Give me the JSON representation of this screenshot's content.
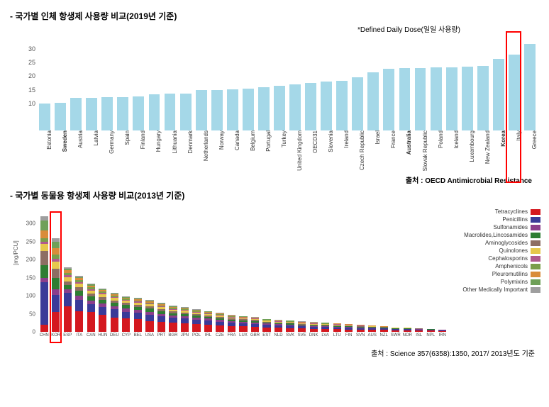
{
  "section1_title": "- 국가별 인체 항생제 사용량 비교(2019년 기준)",
  "ddd_note": "*Defined Daily Dose(일일 사용량)",
  "chart1": {
    "type": "bar",
    "bar_color": "#a5d8e8",
    "background_color": "#ffffff",
    "ylim": [
      0,
      35
    ],
    "yticks": [
      10,
      15,
      20,
      25,
      30
    ],
    "highlight_index": 30,
    "categories": [
      "Estonia",
      "Sweden",
      "Austria",
      "Latvia",
      "Germany",
      "Spain",
      "Finland",
      "Hungary",
      "Lithuania",
      "Denmark",
      "Netherlands",
      "Norway",
      "Canada",
      "Belgium",
      "Portugal",
      "Turkey",
      "United Kingdom",
      "OECD31",
      "Slovenia",
      "Ireland",
      "Czech Republic",
      "Israel",
      "France",
      "Australia",
      "Slovak Republic",
      "Poland",
      "Iceland",
      "Luxembourg",
      "New Zealand",
      "Korea",
      "Italy",
      "Greece"
    ],
    "bold_labels": [
      "Sweden",
      "Australia",
      "Korea"
    ],
    "values": [
      10.0,
      10.3,
      12.0,
      12.1,
      12.3,
      12.4,
      12.5,
      13.3,
      13.5,
      13.7,
      15.0,
      15.0,
      15.2,
      15.5,
      16.0,
      16.5,
      17.0,
      17.5,
      18.0,
      18.2,
      19.5,
      21.5,
      22.8,
      23.0,
      23.0,
      23.2,
      23.3,
      23.5,
      23.7,
      26.5,
      28.0,
      32.0
    ],
    "label_fontsize": 8
  },
  "source1": "출처 : OECD Antimicrobial Resistance",
  "section2_title": "- 국가별 동물용 항생제 사용량 비교(2013년 기준)",
  "chart2": {
    "type": "stacked_bar",
    "ylabel": "[mg/PCU]",
    "ylim": [
      0,
      350
    ],
    "yticks": [
      0,
      50,
      100,
      150,
      200,
      250,
      300
    ],
    "highlight_index": 1,
    "legend": [
      {
        "label": "Tetracyclines",
        "color": "#d4181f"
      },
      {
        "label": "Penicillins",
        "color": "#3a3a98"
      },
      {
        "label": "Sulfonamides",
        "color": "#8b3e8b"
      },
      {
        "label": "Macrolides,Lincosamides",
        "color": "#2e7d32"
      },
      {
        "label": "Aminoglycosides",
        "color": "#8d6e63"
      },
      {
        "label": "Quinolones",
        "color": "#e6c84c"
      },
      {
        "label": "Cephalosporins",
        "color": "#b05a8e"
      },
      {
        "label": "Amphenicols",
        "color": "#7b9e4a"
      },
      {
        "label": "Pleuromutilins",
        "color": "#d98c3a"
      },
      {
        "label": "Polymixins",
        "color": "#6fa058"
      },
      {
        "label": "Other Medically Important",
        "color": "#9e9e9e"
      }
    ],
    "countries": [
      "CHN",
      "KOR",
      "ESP",
      "ITA",
      "CAN",
      "HUN",
      "DEU",
      "CYP",
      "BEL",
      "USA",
      "PRT",
      "BGR",
      "JPN",
      "POL",
      "IRL",
      "CZE",
      "FRA",
      "LUX",
      "GBR",
      "EST",
      "NLD",
      "SVK",
      "SVE",
      "DNK",
      "LVA",
      "LTU",
      "FIN",
      "SVN",
      "AUS",
      "NZL",
      "SWR",
      "NOR",
      "ISL",
      "NPL",
      "IRN"
    ],
    "stacks": [
      [
        20,
        118,
        12,
        35,
        40,
        18,
        6,
        10,
        22,
        28,
        12
      ],
      [
        55,
        48,
        15,
        32,
        25,
        20,
        8,
        12,
        18,
        16,
        10
      ],
      [
        70,
        38,
        10,
        12,
        10,
        12,
        6,
        6,
        8,
        4,
        4
      ],
      [
        58,
        30,
        12,
        15,
        8,
        10,
        5,
        5,
        6,
        3,
        3
      ],
      [
        55,
        22,
        10,
        12,
        8,
        8,
        4,
        4,
        5,
        3,
        3
      ],
      [
        48,
        20,
        10,
        10,
        8,
        8,
        4,
        4,
        4,
        2,
        2
      ],
      [
        40,
        22,
        8,
        10,
        6,
        8,
        3,
        3,
        4,
        2,
        2
      ],
      [
        38,
        18,
        8,
        10,
        6,
        6,
        3,
        3,
        3,
        2,
        2
      ],
      [
        35,
        18,
        8,
        8,
        6,
        6,
        3,
        3,
        3,
        2,
        2
      ],
      [
        30,
        18,
        8,
        8,
        6,
        6,
        3,
        2,
        3,
        2,
        2
      ],
      [
        28,
        16,
        6,
        8,
        5,
        6,
        2,
        2,
        3,
        2,
        2
      ],
      [
        26,
        14,
        6,
        6,
        5,
        5,
        2,
        2,
        2,
        2,
        2
      ],
      [
        24,
        14,
        6,
        6,
        4,
        5,
        2,
        2,
        2,
        2,
        2
      ],
      [
        22,
        12,
        5,
        6,
        4,
        4,
        2,
        2,
        2,
        2,
        2
      ],
      [
        20,
        12,
        5,
        5,
        4,
        4,
        2,
        2,
        2,
        1,
        1
      ],
      [
        18,
        10,
        5,
        5,
        3,
        4,
        2,
        2,
        2,
        1,
        1
      ],
      [
        16,
        10,
        4,
        4,
        3,
        3,
        2,
        1,
        2,
        1,
        1
      ],
      [
        15,
        9,
        4,
        4,
        3,
        3,
        1,
        1,
        2,
        1,
        1
      ],
      [
        14,
        8,
        4,
        4,
        3,
        3,
        1,
        1,
        1,
        1,
        1
      ],
      [
        12,
        8,
        3,
        3,
        2,
        3,
        1,
        1,
        1,
        1,
        1
      ],
      [
        11,
        7,
        3,
        3,
        2,
        2,
        1,
        1,
        1,
        1,
        1
      ],
      [
        10,
        7,
        3,
        3,
        2,
        2,
        1,
        1,
        1,
        1,
        1
      ],
      [
        9,
        6,
        2,
        3,
        2,
        2,
        1,
        1,
        1,
        1,
        1
      ],
      [
        8,
        6,
        2,
        2,
        2,
        2,
        1,
        1,
        1,
        1,
        1
      ],
      [
        8,
        5,
        2,
        2,
        2,
        2,
        1,
        1,
        1,
        1,
        1
      ],
      [
        7,
        5,
        2,
        2,
        2,
        2,
        1,
        1,
        1,
        1,
        0
      ],
      [
        6,
        5,
        2,
        2,
        1,
        2,
        1,
        1,
        1,
        1,
        0
      ],
      [
        6,
        4,
        2,
        2,
        1,
        1,
        1,
        1,
        1,
        0,
        0
      ],
      [
        5,
        4,
        2,
        2,
        1,
        1,
        1,
        0,
        1,
        0,
        0
      ],
      [
        5,
        4,
        1,
        2,
        1,
        1,
        0,
        0,
        1,
        0,
        0
      ],
      [
        4,
        3,
        1,
        1,
        1,
        1,
        0,
        0,
        1,
        0,
        0
      ],
      [
        4,
        3,
        1,
        1,
        1,
        1,
        0,
        0,
        0,
        0,
        0
      ],
      [
        3,
        3,
        1,
        1,
        1,
        1,
        0,
        0,
        0,
        0,
        0
      ],
      [
        3,
        2,
        1,
        1,
        1,
        0,
        0,
        0,
        0,
        0,
        0
      ],
      [
        2,
        2,
        1,
        1,
        0,
        0,
        0,
        0,
        0,
        0,
        0
      ]
    ]
  },
  "source2": "출처 : Science 357(6358):1350, 2017/ 2013년도 기준"
}
